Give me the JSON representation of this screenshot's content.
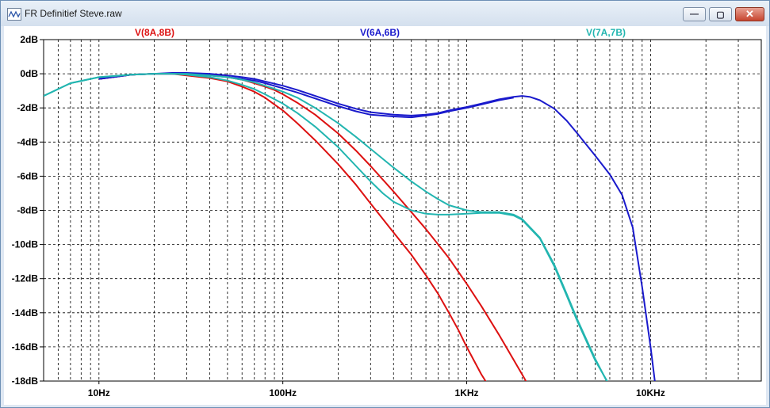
{
  "window": {
    "title": "FR Definitief Steve.raw",
    "buttons": {
      "minimize": "—",
      "maximize": "▢",
      "close": "✕"
    }
  },
  "chart_data": {
    "type": "line",
    "xscale": "log",
    "xlim": [
      5,
      40000
    ],
    "ylim": [
      -18,
      2
    ],
    "grid": true,
    "xticks": [
      {
        "value": 10,
        "label": "10Hz"
      },
      {
        "value": 100,
        "label": "100Hz"
      },
      {
        "value": 1000,
        "label": "1KHz"
      },
      {
        "value": 10000,
        "label": "10KHz"
      }
    ],
    "yticks": [
      {
        "value": 2,
        "label": "2dB"
      },
      {
        "value": 0,
        "label": "0dB"
      },
      {
        "value": -2,
        "label": "-2dB"
      },
      {
        "value": -4,
        "label": "-4dB"
      },
      {
        "value": -6,
        "label": "-6dB"
      },
      {
        "value": -8,
        "label": "-8dB"
      },
      {
        "value": -10,
        "label": "-10dB"
      },
      {
        "value": -12,
        "label": "-12dB"
      },
      {
        "value": -14,
        "label": "-14dB"
      },
      {
        "value": -16,
        "label": "-16dB"
      },
      {
        "value": -18,
        "label": "-18dB"
      }
    ],
    "series": [
      {
        "name": "V(8A,8B)",
        "color": "#dd1111",
        "curves": [
          [
            [
              10,
              -0.3
            ],
            [
              15,
              -0.05
            ],
            [
              20,
              0.0
            ],
            [
              25,
              0.0
            ],
            [
              30,
              -0.1
            ],
            [
              40,
              -0.25
            ],
            [
              50,
              -0.45
            ],
            [
              60,
              -0.75
            ],
            [
              70,
              -1.05
            ],
            [
              80,
              -1.4
            ],
            [
              90,
              -1.8
            ],
            [
              100,
              -2.15
            ],
            [
              120,
              -2.9
            ],
            [
              150,
              -3.9
            ],
            [
              200,
              -5.3
            ],
            [
              250,
              -6.5
            ],
            [
              300,
              -7.6
            ],
            [
              400,
              -9.3
            ],
            [
              500,
              -10.6
            ],
            [
              600,
              -11.8
            ],
            [
              700,
              -12.9
            ],
            [
              800,
              -14.0
            ],
            [
              900,
              -15.0
            ],
            [
              1000,
              -16.0
            ],
            [
              1200,
              -17.6
            ],
            [
              1300,
              -18.2
            ]
          ],
          [
            [
              10,
              -0.3
            ],
            [
              15,
              -0.05
            ],
            [
              20,
              0.0
            ],
            [
              25,
              0.0
            ],
            [
              30,
              0.0
            ],
            [
              40,
              -0.05
            ],
            [
              50,
              -0.2
            ],
            [
              60,
              -0.35
            ],
            [
              70,
              -0.55
            ],
            [
              80,
              -0.75
            ],
            [
              90,
              -0.95
            ],
            [
              100,
              -1.2
            ],
            [
              120,
              -1.7
            ],
            [
              150,
              -2.4
            ],
            [
              200,
              -3.5
            ],
            [
              250,
              -4.5
            ],
            [
              300,
              -5.4
            ],
            [
              400,
              -6.9
            ],
            [
              500,
              -8.1
            ],
            [
              600,
              -9.1
            ],
            [
              700,
              -10.0
            ],
            [
              800,
              -10.8
            ],
            [
              1000,
              -12.3
            ],
            [
              1200,
              -13.6
            ],
            [
              1500,
              -15.3
            ],
            [
              2000,
              -17.6
            ],
            [
              2150,
              -18.2
            ]
          ]
        ]
      },
      {
        "name": "V(6A,6B)",
        "color": "#1a1acc",
        "curves": [
          [
            [
              10,
              -0.3
            ],
            [
              15,
              -0.05
            ],
            [
              20,
              0.0
            ],
            [
              25,
              0.05
            ],
            [
              30,
              0.05
            ],
            [
              40,
              0.0
            ],
            [
              50,
              -0.1
            ],
            [
              60,
              -0.2
            ],
            [
              70,
              -0.3
            ],
            [
              80,
              -0.45
            ],
            [
              100,
              -0.7
            ],
            [
              120,
              -0.95
            ],
            [
              150,
              -1.3
            ],
            [
              200,
              -1.75
            ],
            [
              250,
              -2.05
            ],
            [
              300,
              -2.25
            ],
            [
              400,
              -2.4
            ],
            [
              500,
              -2.45
            ],
            [
              600,
              -2.4
            ],
            [
              700,
              -2.3
            ],
            [
              800,
              -2.15
            ],
            [
              1000,
              -1.95
            ],
            [
              1200,
              -1.75
            ],
            [
              1500,
              -1.5
            ],
            [
              1800,
              -1.35
            ],
            [
              2000,
              -1.3
            ],
            [
              2200,
              -1.35
            ],
            [
              2500,
              -1.55
            ],
            [
              3000,
              -2.05
            ],
            [
              3500,
              -2.75
            ],
            [
              4000,
              -3.5
            ],
            [
              5000,
              -4.8
            ],
            [
              6000,
              -5.9
            ],
            [
              7000,
              -7.1
            ],
            [
              8000,
              -9.0
            ],
            [
              9000,
              -12.5
            ],
            [
              10000,
              -16.0
            ],
            [
              10600,
              -18.2
            ]
          ],
          [
            [
              10,
              -0.3
            ],
            [
              15,
              -0.05
            ],
            [
              20,
              0.0
            ],
            [
              25,
              0.0
            ],
            [
              30,
              0.0
            ],
            [
              40,
              -0.1
            ],
            [
              50,
              -0.2
            ],
            [
              60,
              -0.3
            ],
            [
              70,
              -0.4
            ],
            [
              80,
              -0.55
            ],
            [
              100,
              -0.85
            ],
            [
              120,
              -1.1
            ],
            [
              150,
              -1.45
            ],
            [
              200,
              -1.9
            ],
            [
              250,
              -2.2
            ],
            [
              300,
              -2.4
            ],
            [
              400,
              -2.5
            ],
            [
              500,
              -2.55
            ],
            [
              600,
              -2.45
            ],
            [
              700,
              -2.35
            ],
            [
              800,
              -2.2
            ],
            [
              1000,
              -2.0
            ],
            [
              1200,
              -1.8
            ],
            [
              1500,
              -1.55
            ],
            [
              1800,
              -1.4
            ]
          ]
        ]
      },
      {
        "name": "V(7A,7B)",
        "color": "#22b5b0",
        "curves": [
          [
            [
              5,
              -1.3
            ],
            [
              7,
              -0.55
            ],
            [
              10,
              -0.2
            ],
            [
              15,
              -0.05
            ],
            [
              20,
              0.0
            ],
            [
              25,
              0.0
            ],
            [
              30,
              0.0
            ],
            [
              40,
              -0.1
            ],
            [
              50,
              -0.2
            ],
            [
              60,
              -0.35
            ],
            [
              70,
              -0.5
            ],
            [
              80,
              -0.7
            ],
            [
              100,
              -1.05
            ],
            [
              120,
              -1.4
            ],
            [
              150,
              -2.0
            ],
            [
              200,
              -2.9
            ],
            [
              250,
              -3.7
            ],
            [
              300,
              -4.4
            ],
            [
              400,
              -5.5
            ],
            [
              500,
              -6.3
            ],
            [
              600,
              -6.9
            ],
            [
              700,
              -7.35
            ],
            [
              800,
              -7.7
            ],
            [
              1000,
              -8.0
            ],
            [
              1200,
              -8.1
            ],
            [
              1500,
              -8.1
            ],
            [
              1800,
              -8.25
            ],
            [
              2000,
              -8.5
            ],
            [
              2500,
              -9.6
            ],
            [
              3000,
              -11.2
            ],
            [
              3500,
              -12.9
            ],
            [
              4000,
              -14.4
            ],
            [
              5000,
              -16.7
            ],
            [
              5900,
              -18.2
            ]
          ],
          [
            [
              5,
              -1.3
            ],
            [
              7,
              -0.55
            ],
            [
              10,
              -0.2
            ],
            [
              15,
              -0.05
            ],
            [
              20,
              0.0
            ],
            [
              25,
              0.0
            ],
            [
              30,
              -0.05
            ],
            [
              40,
              -0.2
            ],
            [
              50,
              -0.4
            ],
            [
              60,
              -0.65
            ],
            [
              70,
              -0.9
            ],
            [
              80,
              -1.2
            ],
            [
              100,
              -1.75
            ],
            [
              120,
              -2.3
            ],
            [
              150,
              -3.1
            ],
            [
              200,
              -4.3
            ],
            [
              250,
              -5.4
            ],
            [
              300,
              -6.3
            ],
            [
              350,
              -7.0
            ],
            [
              400,
              -7.5
            ],
            [
              500,
              -8.0
            ],
            [
              600,
              -8.2
            ],
            [
              700,
              -8.25
            ],
            [
              800,
              -8.25
            ],
            [
              1000,
              -8.2
            ],
            [
              1200,
              -8.15
            ],
            [
              1500,
              -8.15
            ],
            [
              1800,
              -8.3
            ],
            [
              2000,
              -8.55
            ],
            [
              2500,
              -9.65
            ],
            [
              3000,
              -11.3
            ],
            [
              3500,
              -13.0
            ],
            [
              4000,
              -14.5
            ],
            [
              5000,
              -16.8
            ],
            [
              5950,
              -18.2
            ]
          ]
        ]
      }
    ]
  }
}
